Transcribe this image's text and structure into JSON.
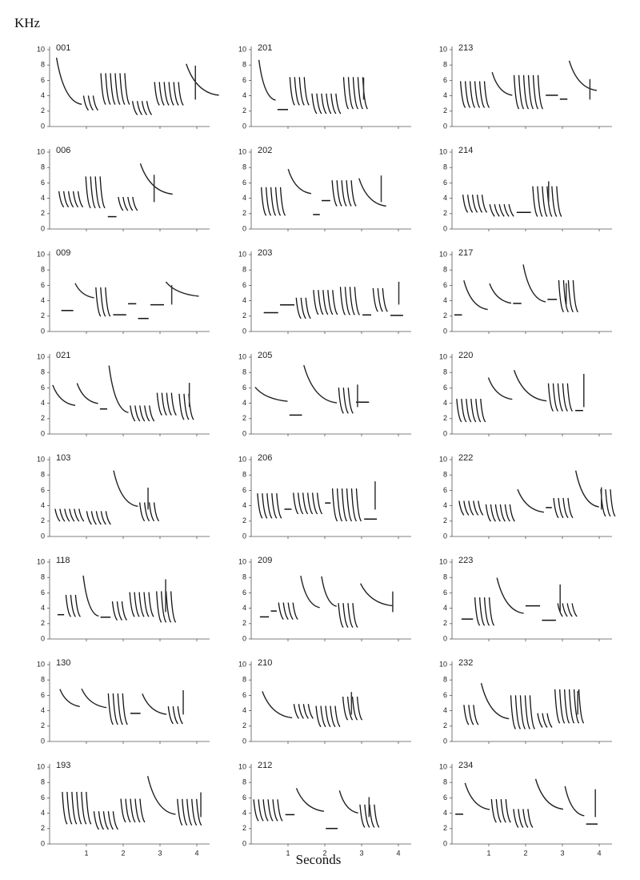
{
  "y_axis_label": "KHz",
  "x_axis_label": "Seconds",
  "yticks": [
    0,
    2,
    4,
    6,
    8,
    10
  ],
  "xticks": [
    1,
    2,
    3,
    4
  ],
  "panels": [
    "001",
    "201",
    "213",
    "006",
    "202",
    "214",
    "009",
    "203",
    "217",
    "021",
    "205",
    "220",
    "103",
    "206",
    "222",
    "118",
    "209",
    "223",
    "130",
    "210",
    "232",
    "193",
    "212",
    "234"
  ]
}
